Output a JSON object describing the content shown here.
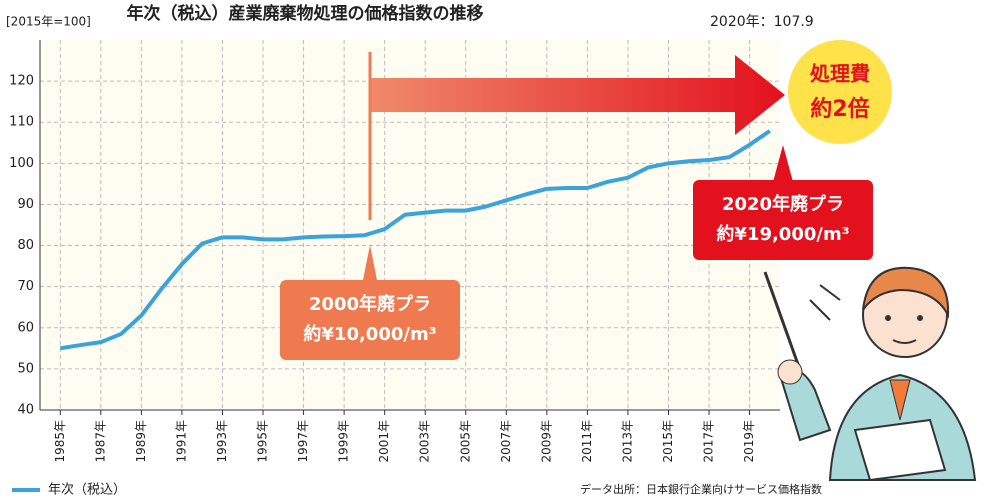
{
  "chart_data": {
    "type": "line",
    "title": "年次（税込）産業廃棄物処理の価格指数の推移",
    "unit_label": "[2015年=100]",
    "latest_label": "2020年：107.9",
    "x": [
      1985,
      1986,
      1987,
      1988,
      1989,
      1990,
      1991,
      1992,
      1993,
      1994,
      1995,
      1996,
      1997,
      1998,
      1999,
      2000,
      2001,
      2002,
      2003,
      2004,
      2005,
      2006,
      2007,
      2008,
      2009,
      2010,
      2011,
      2012,
      2013,
      2014,
      2015,
      2016,
      2017,
      2018,
      2019,
      2020
    ],
    "series": [
      {
        "name": "年次（税込）",
        "color": "#3aa3dc",
        "values": [
          55,
          55.8,
          56.5,
          58.5,
          63,
          69.5,
          75.5,
          80.5,
          82,
          82,
          81.5,
          81.5,
          82,
          82.2,
          82.3,
          82.5,
          84,
          87.5,
          88,
          88.5,
          88.5,
          89.5,
          91,
          92.5,
          93.8,
          94,
          94,
          95.5,
          96.5,
          99,
          100,
          100.5,
          100.8,
          101.5,
          104.5,
          107.9
        ]
      }
    ],
    "xlim": [
      1984,
      2020.5
    ],
    "xticks": [
      {
        "value": 1985,
        "label": "1985年"
      },
      {
        "value": 1987,
        "label": "1987年"
      },
      {
        "value": 1989,
        "label": "1989年"
      },
      {
        "value": 1991,
        "label": "1991年"
      },
      {
        "value": 1993,
        "label": "1993年"
      },
      {
        "value": 1995,
        "label": "1995年"
      },
      {
        "value": 1997,
        "label": "1997年"
      },
      {
        "value": 1999,
        "label": "1999年"
      },
      {
        "value": 2001,
        "label": "2001年"
      },
      {
        "value": 2003,
        "label": "2003年"
      },
      {
        "value": 2005,
        "label": "2005年"
      },
      {
        "value": 2007,
        "label": "2007年"
      },
      {
        "value": 2009,
        "label": "2009年"
      },
      {
        "value": 2011,
        "label": "2011年"
      },
      {
        "value": 2013,
        "label": "2013年"
      },
      {
        "value": 2015,
        "label": "2015年"
      },
      {
        "value": 2017,
        "label": "2017年"
      },
      {
        "value": 2019,
        "label": "2019年"
      }
    ],
    "ylim": [
      40,
      130
    ],
    "yticks": [
      40,
      50,
      60,
      70,
      80,
      90,
      100,
      110,
      120
    ],
    "grid": true,
    "callout_2000": [
      "2000年廃プラ",
      "約¥10,000/m³"
    ],
    "callout_2020": [
      "2020年廃プラ",
      "約¥19,000/m³"
    ],
    "badge": [
      "処理費",
      "約2倍"
    ],
    "source": "データ出所：日本銀行企業向けサービス価格指数"
  }
}
